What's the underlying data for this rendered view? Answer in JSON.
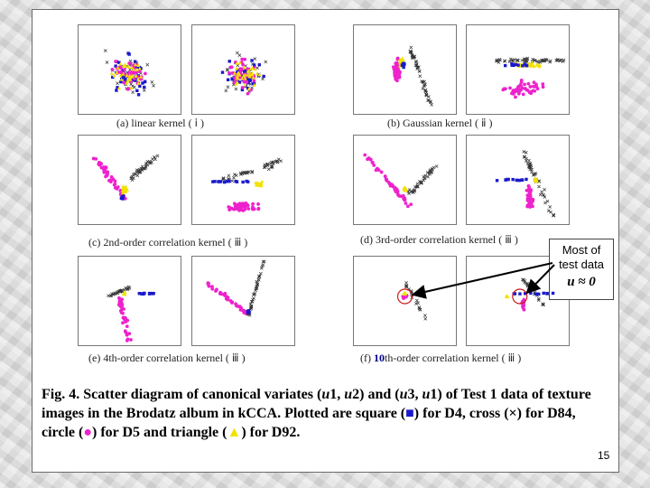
{
  "captions": {
    "a": "(a) linear kernel ( ⅰ )",
    "b": "(b) Gaussian kernel ( ⅱ )",
    "c": "(c) 2nd-order correlation kernel ( ⅲ )",
    "d": "(d) 3rd-order correlation kernel ( ⅲ )",
    "e": "(e) 4th-order correlation kernel ( ⅲ )",
    "f_prefix": "(f) ",
    "f_num": "10",
    "f_suffix": "th-order correlation kernel ( ⅲ )"
  },
  "callout": {
    "line1": "Most of",
    "line2": "test data",
    "formula": "u ≈ 0"
  },
  "figure_caption": {
    "label": "Fig. 4.",
    "text1": "  Scatter diagram of canonical variates (",
    "u1a": "u",
    "t2": "1, ",
    "u2a": "u",
    "t3": "2) and (",
    "u3a": "u",
    "t4": "3, ",
    "u4a": "u",
    "t5": "1) of Test 1 data of texture images in the Brodatz album in kCCA. Plotted are square (",
    "square": "■",
    "t6": ") for D4, cross (×) for D84, circle (",
    "circle": "●",
    "t7": ") for D5 and triangle (",
    "triangle": "▲",
    "t8": ") for D92."
  },
  "page_number": "15",
  "colors": {
    "square": "#1a1acc",
    "cross": "#333333",
    "circle": "#ee22cc",
    "triangle": "#f2e200",
    "arrow": "#000000",
    "highlight_circle": "#cc1a1a"
  },
  "chart_data": [
    {
      "type": "scatter",
      "panel": "a-left",
      "pattern": "mixed-cloud"
    },
    {
      "type": "scatter",
      "panel": "a-right",
      "pattern": "mixed-cloud"
    },
    {
      "type": "scatter",
      "panel": "b-left",
      "pattern": "vertical-cluster"
    },
    {
      "type": "scatter",
      "panel": "b-right",
      "pattern": "horizontal-band"
    },
    {
      "type": "scatter",
      "panel": "c-left",
      "pattern": "diagonal-split"
    },
    {
      "type": "scatter",
      "panel": "c-right",
      "pattern": "horizontal-split"
    },
    {
      "type": "scatter",
      "panel": "d-left",
      "pattern": "diagonal-split"
    },
    {
      "type": "scatter",
      "panel": "d-right",
      "pattern": "vertical-split"
    },
    {
      "type": "scatter",
      "panel": "e-left",
      "pattern": "cross-arms"
    },
    {
      "type": "scatter",
      "panel": "e-right",
      "pattern": "v-shape"
    },
    {
      "type": "scatter",
      "panel": "f-left",
      "pattern": "collapsed-center"
    },
    {
      "type": "scatter",
      "panel": "f-right",
      "pattern": "collapsed-center"
    }
  ]
}
